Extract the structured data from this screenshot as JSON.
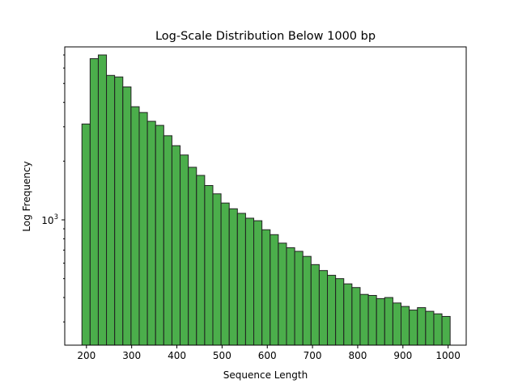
{
  "chart_data": {
    "type": "bar",
    "title": "Log-Scale Distribution Below 1000 bp",
    "xlabel": "Sequence Length",
    "ylabel": "Log Frequency",
    "yscale": "log",
    "xlim": [
      152,
      1040
    ],
    "ylim": [
      228,
      7700
    ],
    "grid": false,
    "legend": "none",
    "bar_color": "#2ca02c",
    "bar_edge_color": "#222222",
    "x_ticks": [
      200,
      300,
      400,
      500,
      600,
      700,
      800,
      900,
      1000
    ],
    "x_tick_labels": [
      "200",
      "300",
      "400",
      "500",
      "600",
      "700",
      "800",
      "900",
      "1000"
    ],
    "y_ticks": [
      1000
    ],
    "y_tick_labels": [
      "10",
      "3"
    ],
    "bin_width": 18.1,
    "bin_left_edges": [
      190,
      208.1,
      226.2,
      244.3,
      262.4,
      280.5,
      298.6,
      316.7,
      334.8,
      352.9,
      371,
      389.1,
      407.2,
      425.3,
      443.4,
      461.5,
      479.6,
      497.7,
      515.8,
      533.9,
      552,
      570.1,
      588.2,
      606.3,
      624.4,
      642.5,
      660.6,
      678.7,
      696.8,
      714.9,
      733,
      751.1,
      769.2,
      787.3,
      805.4,
      823.5,
      841.6,
      859.7,
      877.8,
      895.9,
      914,
      932.1,
      950.2,
      968.3,
      986.4
    ],
    "values": [
      3100,
      6700,
      7000,
      5500,
      5400,
      4800,
      3800,
      3550,
      3200,
      3050,
      2700,
      2400,
      2150,
      1860,
      1690,
      1500,
      1360,
      1220,
      1140,
      1080,
      1020,
      990,
      890,
      840,
      760,
      720,
      690,
      650,
      590,
      550,
      520,
      500,
      470,
      450,
      415,
      410,
      395,
      400,
      375,
      360,
      345,
      355,
      340,
      330,
      320
    ]
  }
}
